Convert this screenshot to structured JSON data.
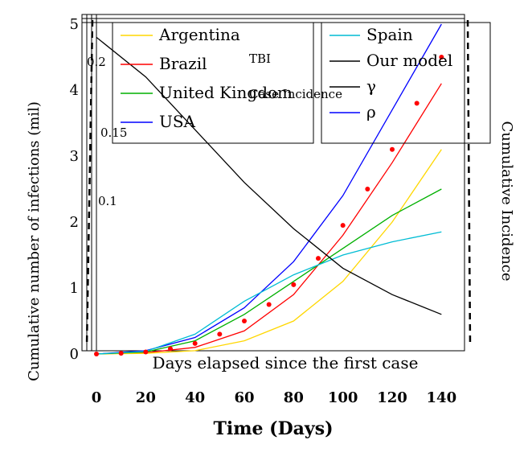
{
  "chart_data": {
    "type": "line",
    "title": "",
    "xlabel": "Days elapsed since the first case",
    "xlabel_alt": "Time (Days)",
    "ylabel": "Cumulative number of infections (mil)",
    "ylabel_right": "Cumulative Incidence",
    "xlim": [
      0,
      150
    ],
    "ylim": [
      0,
      5
    ],
    "x_ticks": [
      "0",
      "20",
      "40",
      "60",
      "80",
      "100",
      "120",
      "140"
    ],
    "y_ticks": [
      "0",
      "1",
      "2",
      "3",
      "4",
      "5"
    ],
    "legend": {
      "position": "top",
      "entries": [
        "Argentina",
        "Brazil",
        "United Kingdom",
        "USA",
        "Spain",
        "Our model",
        "γ",
        "ρ"
      ]
    },
    "annotations": [
      "Case Incidence",
      "TBI",
      "0.2",
      "0.15",
      "0.1"
    ],
    "overlay_layers": 12,
    "series": [
      {
        "name": "USA",
        "color": "#0000ff",
        "x": [
          0,
          20,
          40,
          60,
          80,
          100,
          120,
          140
        ],
        "y": [
          0,
          0.05,
          0.25,
          0.7,
          1.4,
          2.4,
          3.7,
          5.0
        ]
      },
      {
        "name": "Brazil",
        "color": "#ff0000",
        "x": [
          0,
          20,
          40,
          60,
          80,
          100,
          120,
          140
        ],
        "y": [
          0,
          0.02,
          0.1,
          0.35,
          0.9,
          1.8,
          2.9,
          4.1
        ]
      },
      {
        "name": "Argentina",
        "color": "#ffd700",
        "x": [
          0,
          20,
          40,
          60,
          80,
          100,
          120,
          140
        ],
        "y": [
          0,
          0.01,
          0.05,
          0.2,
          0.5,
          1.1,
          2.0,
          3.1
        ]
      },
      {
        "name": "United Kingdom",
        "color": "#00b000",
        "x": [
          0,
          20,
          40,
          60,
          80,
          100,
          120,
          140
        ],
        "y": [
          0,
          0.03,
          0.2,
          0.6,
          1.1,
          1.6,
          2.1,
          2.5
        ]
      },
      {
        "name": "Spain",
        "color": "#00bcd4",
        "x": [
          0,
          20,
          40,
          60,
          80,
          100,
          120,
          140
        ],
        "y": [
          0,
          0.04,
          0.3,
          0.8,
          1.2,
          1.5,
          1.7,
          1.85
        ]
      },
      {
        "name": "Our model",
        "color": "#000000",
        "x": [
          0,
          20,
          40,
          60,
          80,
          100,
          120,
          140
        ],
        "y": [
          4.8,
          4.2,
          3.4,
          2.6,
          1.9,
          1.3,
          0.9,
          0.6
        ]
      }
    ],
    "scatter": {
      "name": "observed",
      "color": "#ff0000",
      "x": [
        0,
        10,
        20,
        30,
        40,
        50,
        60,
        70,
        80,
        90,
        100,
        110,
        120,
        130,
        140
      ],
      "y": [
        0,
        0.01,
        0.03,
        0.08,
        0.16,
        0.3,
        0.5,
        0.75,
        1.05,
        1.45,
        1.95,
        2.5,
        3.1,
        3.8,
        4.5
      ]
    }
  }
}
